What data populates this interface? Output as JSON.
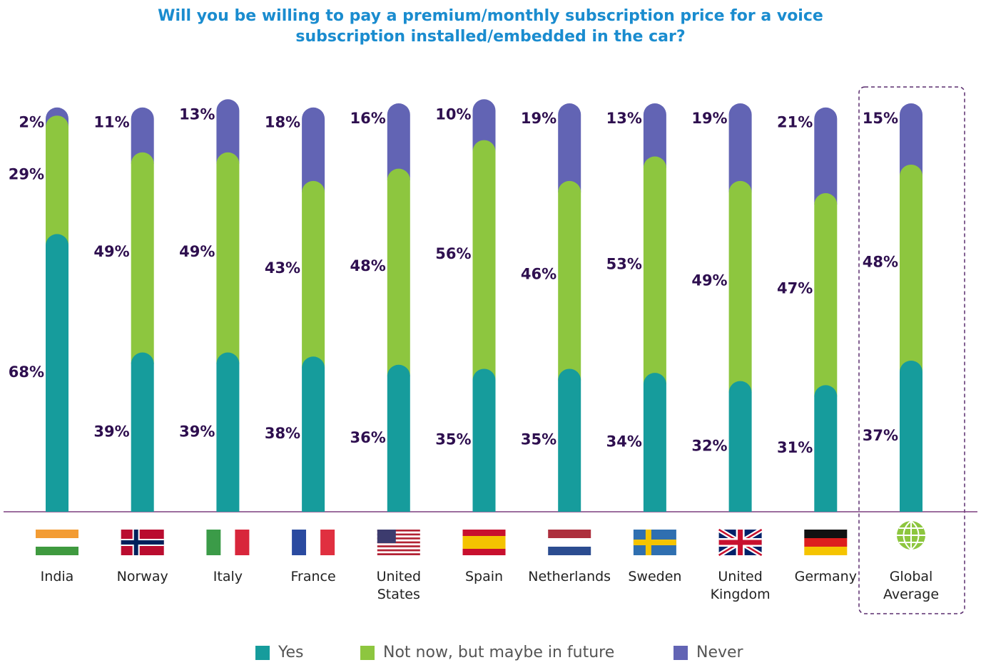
{
  "chart_data": {
    "type": "stacked_bar",
    "title": "Will you be willing to pay a premium/monthly subscription price for a voice subscription installed/embedded in the car?",
    "categories": [
      "India",
      "Norway",
      "Italy",
      "France",
      "United States",
      "Spain",
      "Netherlands",
      "Sweden",
      "United Kingdom",
      "Germany",
      "Global Average"
    ],
    "series": [
      {
        "name": "Yes",
        "color": "#169c9c",
        "values": [
          68,
          39,
          39,
          38,
          36,
          35,
          35,
          34,
          32,
          31,
          37
        ],
        "value_labels": [
          "68%",
          "39%",
          "39%",
          "38%",
          "36%",
          "35%",
          "35%",
          "34%",
          "32%",
          "31%",
          "37%"
        ]
      },
      {
        "name": "Not now, but maybe in future",
        "color": "#8dc63f",
        "values": [
          29,
          49,
          49,
          43,
          48,
          56,
          46,
          53,
          49,
          47,
          48
        ],
        "value_labels": [
          "29%",
          "49%",
          "49%",
          "43%",
          "48%",
          "56%",
          "46%",
          "53%",
          "49%",
          "47%",
          "48%"
        ]
      },
      {
        "name": "Never",
        "color": "#6264b4",
        "values": [
          2,
          11,
          13,
          18,
          16,
          10,
          19,
          13,
          19,
          21,
          15
        ],
        "value_labels": [
          "2%",
          "11%",
          "13%",
          "18%",
          "16%",
          "10%",
          "19%",
          "13%",
          "19%",
          "21%",
          "15%"
        ]
      }
    ]
  }
}
